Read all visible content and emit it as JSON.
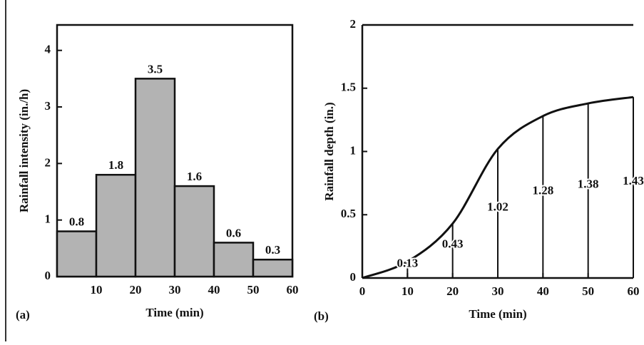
{
  "chart_data": [
    {
      "type": "histogram",
      "panel": "(a)",
      "xlabel": "Time (min)",
      "ylabel": "Rainfall intensity (in./h)",
      "bins": [
        0,
        10,
        20,
        30,
        40,
        50,
        60
      ],
      "values": [
        0.8,
        1.8,
        3.5,
        1.6,
        0.6,
        0.3
      ],
      "color": "#b3b3b3",
      "xlim": [
        0,
        60
      ],
      "xticks": [
        10,
        20,
        30,
        40,
        50,
        60
      ],
      "ylim": [
        0,
        4.45
      ],
      "yticks": [
        0,
        1,
        2,
        3,
        4
      ]
    },
    {
      "type": "line",
      "panel": "(b)",
      "xlabel": "Time (min)",
      "ylabel": "Rainfall depth (in.)",
      "x": [
        0,
        10,
        20,
        30,
        40,
        50,
        60
      ],
      "values": [
        0,
        0.13,
        0.43,
        1.02,
        1.28,
        1.38,
        1.43
      ],
      "color": "#111111",
      "xlim": [
        0,
        60
      ],
      "xticks": [
        0,
        10,
        20,
        30,
        40,
        50,
        60
      ],
      "ylim": [
        0,
        2
      ],
      "yticks": [
        0,
        0.5,
        1,
        1.5,
        2
      ]
    }
  ]
}
